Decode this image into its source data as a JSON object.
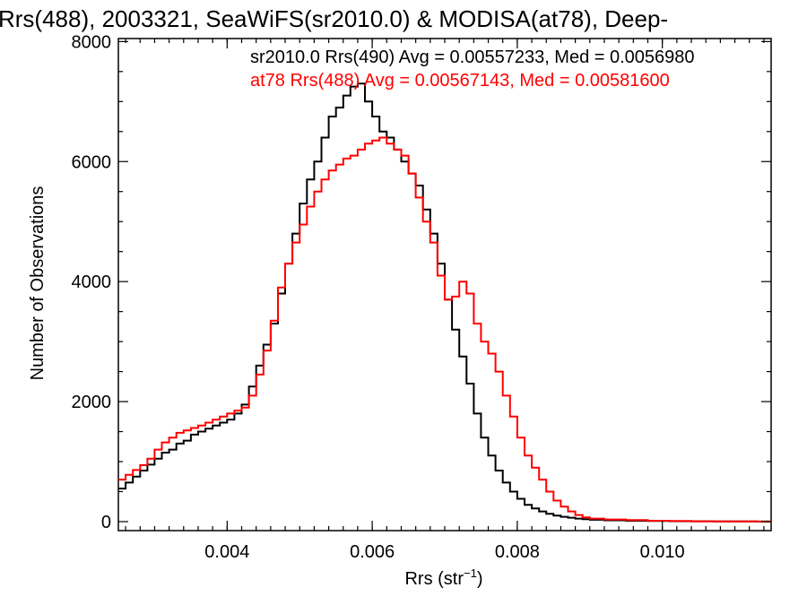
{
  "chart_data": {
    "type": "line",
    "style": "step",
    "title": "Rrs(488), 2003321, SeaWiFS(sr2010.0) & MODISA(at78), Deep-",
    "xlabel": "Rrs (str",
    "xlabel_superscript": "−1",
    "xlabel_suffix": ")",
    "ylabel": "Number of Observations",
    "xlim": [
      0.0025,
      0.0115
    ],
    "ylim": [
      -150,
      8050
    ],
    "x_ticks": [
      0.004,
      0.006,
      0.008,
      0.01
    ],
    "x_tick_labels": [
      "0.004",
      "0.006",
      "0.008",
      "0.010"
    ],
    "y_ticks": [
      0,
      2000,
      4000,
      6000,
      8000
    ],
    "y_tick_labels": [
      "0",
      "2000",
      "4000",
      "6000",
      "8000"
    ],
    "grid": false,
    "legend_placement": "top",
    "series": [
      {
        "name": "sr2010.0 Rrs(490) Avg = 0.00557233, Med = 0.0056980",
        "color": "#000000",
        "x": [
          0.0025,
          0.0026,
          0.0027,
          0.0028,
          0.0029,
          0.003,
          0.0031,
          0.0032,
          0.0033,
          0.0034,
          0.0035,
          0.0036,
          0.0037,
          0.0038,
          0.0039,
          0.004,
          0.0041,
          0.0042,
          0.0043,
          0.0044,
          0.0045,
          0.0046,
          0.0047,
          0.0048,
          0.0049,
          0.005,
          0.0051,
          0.0052,
          0.0053,
          0.0054,
          0.0055,
          0.0056,
          0.0057,
          0.0058,
          0.0059,
          0.006,
          0.0061,
          0.0062,
          0.0063,
          0.0064,
          0.0065,
          0.0066,
          0.0067,
          0.0068,
          0.0069,
          0.007,
          0.0071,
          0.0072,
          0.0073,
          0.0074,
          0.0075,
          0.0076,
          0.0077,
          0.0078,
          0.0079,
          0.008,
          0.0081,
          0.0082,
          0.0083,
          0.0084,
          0.0085,
          0.0086,
          0.0087,
          0.0088,
          0.0089,
          0.009,
          0.0092,
          0.0095,
          0.0098,
          0.0101,
          0.0104,
          0.0107,
          0.011,
          0.0113,
          0.0115
        ],
        "y": [
          550,
          650,
          750,
          850,
          950,
          1050,
          1150,
          1200,
          1300,
          1350,
          1450,
          1500,
          1550,
          1600,
          1650,
          1700,
          1800,
          1950,
          2250,
          2600,
          2950,
          3300,
          3800,
          4300,
          4800,
          5300,
          5700,
          6000,
          6400,
          6750,
          6900,
          7100,
          7250,
          7300,
          7000,
          6750,
          6500,
          6400,
          6200,
          6000,
          5800,
          5600,
          5200,
          4800,
          4300,
          3700,
          3200,
          2750,
          2300,
          1800,
          1400,
          1100,
          850,
          650,
          500,
          380,
          280,
          220,
          170,
          130,
          100,
          80,
          65,
          50,
          40,
          30,
          22,
          15,
          10,
          7,
          5,
          3,
          2,
          1,
          0
        ]
      },
      {
        "name": "at78 Rrs(488) Avg = 0.00567143, Med = 0.00581600",
        "color": "#ff0000",
        "x": [
          0.0025,
          0.0026,
          0.0027,
          0.0028,
          0.0029,
          0.003,
          0.0031,
          0.0032,
          0.0033,
          0.0034,
          0.0035,
          0.0036,
          0.0037,
          0.0038,
          0.0039,
          0.004,
          0.0041,
          0.0042,
          0.0043,
          0.0044,
          0.0045,
          0.0046,
          0.0047,
          0.0048,
          0.0049,
          0.005,
          0.0051,
          0.0052,
          0.0053,
          0.0054,
          0.0055,
          0.0056,
          0.0057,
          0.0058,
          0.0059,
          0.006,
          0.0061,
          0.0062,
          0.0063,
          0.0064,
          0.0065,
          0.0066,
          0.0067,
          0.0068,
          0.0069,
          0.007,
          0.0071,
          0.0072,
          0.0073,
          0.0074,
          0.0075,
          0.0076,
          0.0077,
          0.0078,
          0.0079,
          0.008,
          0.0081,
          0.0082,
          0.0083,
          0.0084,
          0.0085,
          0.0086,
          0.0087,
          0.0088,
          0.0089,
          0.009,
          0.0092,
          0.0095,
          0.0098,
          0.0101,
          0.0104,
          0.0107,
          0.011,
          0.0113,
          0.0115
        ],
        "y": [
          700,
          780,
          860,
          940,
          1050,
          1200,
          1320,
          1400,
          1480,
          1520,
          1560,
          1600,
          1650,
          1700,
          1750,
          1800,
          1850,
          1900,
          2100,
          2450,
          2850,
          3350,
          3900,
          4300,
          4650,
          4950,
          5250,
          5500,
          5700,
          5850,
          5950,
          6050,
          6100,
          6200,
          6300,
          6350,
          6400,
          6300,
          6200,
          6100,
          5800,
          5400,
          5000,
          4650,
          4100,
          3700,
          3750,
          4000,
          3800,
          3300,
          3000,
          2800,
          2500,
          2100,
          1750,
          1400,
          1100,
          900,
          700,
          500,
          350,
          250,
          170,
          110,
          70,
          50,
          35,
          25,
          15,
          10,
          6,
          4,
          2,
          1,
          0
        ]
      }
    ]
  }
}
